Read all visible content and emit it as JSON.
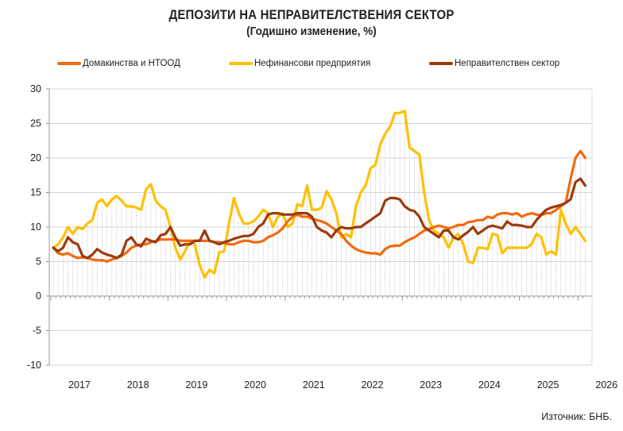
{
  "chart_data": {
    "type": "line",
    "title": "ДЕПОЗИТИ НА НЕПРАВИТЕЛСТВЕНИЯ СЕКТОР",
    "subtitle": "(Годишно изменение, %)",
    "xlabel": "",
    "ylabel": "",
    "ylim": [
      -10,
      30
    ],
    "yticks": [
      -10,
      -5,
      0,
      5,
      10,
      15,
      20,
      25,
      30
    ],
    "x_tick_labels": [
      "2017",
      "2018",
      "2019",
      "2020",
      "2021",
      "2022",
      "2023",
      "2024",
      "2025",
      "2026"
    ],
    "x_start": "2017-01",
    "frequency": "monthly",
    "grid": true,
    "legend_position": "top",
    "source": "Източник: БНБ.",
    "series": [
      {
        "name": "Домакинства и НТООД",
        "color": "#f26a10",
        "values": [
          7,
          6.2,
          6,
          6.2,
          5.8,
          5.5,
          5.6,
          5.5,
          5.3,
          5.2,
          5.2,
          5,
          5.3,
          5.5,
          5.8,
          6.3,
          7,
          7.3,
          7.5,
          7.5,
          7.8,
          8,
          8.2,
          8.2,
          8.2,
          8.2,
          8,
          8,
          8,
          8,
          8,
          8,
          8,
          7.8,
          7.8,
          7.7,
          7.5,
          7.5,
          7.8,
          8,
          8,
          7.8,
          7.8,
          8,
          8.5,
          8.8,
          9.2,
          9.8,
          10.8,
          11.5,
          11.8,
          11.5,
          11.5,
          11.2,
          11,
          10.8,
          10.5,
          10,
          9.5,
          9,
          8,
          7.3,
          6.8,
          6.5,
          6.3,
          6.2,
          6.2,
          6,
          6.8,
          7.2,
          7.3,
          7.3,
          7.8,
          8.2,
          8.5,
          9,
          9.5,
          9.7,
          10,
          10.2,
          10,
          9.8,
          10,
          10.3,
          10.3,
          10.7,
          10.8,
          11,
          11,
          11.5,
          11.3,
          11.8,
          12,
          12,
          11.8,
          12,
          11.5,
          11.8,
          12,
          11.8,
          11.7,
          12,
          12,
          12.5,
          13,
          13.5,
          17,
          20,
          21,
          20
        ]
      },
      {
        "name": "Нефинансови предприятия",
        "color": "#ffc000",
        "values": [
          7,
          7.5,
          8.5,
          10,
          9,
          10,
          9.7,
          10.5,
          11,
          13.5,
          14,
          13,
          14,
          14.5,
          13.8,
          13,
          13,
          12.8,
          12.5,
          15.5,
          16.2,
          13.8,
          13,
          12.5,
          10,
          7,
          5.3,
          6.5,
          8,
          7.5,
          4.5,
          2.7,
          3.8,
          3.3,
          6.3,
          6.5,
          10.5,
          14.2,
          12,
          10.5,
          10.5,
          10.8,
          11.5,
          12.5,
          12,
          10,
          11.5,
          12,
          10,
          10.5,
          13.3,
          13,
          16,
          12.5,
          12.5,
          12.8,
          15.2,
          14,
          12,
          8.5,
          9,
          8.5,
          13,
          15,
          16,
          18.5,
          19,
          22,
          23.5,
          24.5,
          26.5,
          26.5,
          26.8,
          21.5,
          21,
          20.5,
          15,
          11,
          9.5,
          9,
          8.5,
          7,
          8.5,
          9,
          7.5,
          5,
          4.8,
          7,
          7,
          6.8,
          9,
          8.8,
          6.2,
          7,
          7,
          7,
          7,
          7,
          7.5,
          9,
          8.5,
          6,
          6.5,
          6,
          12.5,
          10.5,
          9,
          10,
          9,
          8
        ]
      },
      {
        "name": "Неправителствен сектор",
        "color": "#9c3a0c",
        "values": [
          7,
          6.5,
          7,
          8.5,
          7.8,
          7.5,
          5.8,
          5.5,
          6,
          6.8,
          6.3,
          6,
          5.8,
          5.5,
          6,
          8,
          8.5,
          7.5,
          7.2,
          8.3,
          8,
          7.8,
          8.8,
          9,
          10,
          8.5,
          7.3,
          7.5,
          7.5,
          8,
          8,
          9.5,
          8,
          7.8,
          7.5,
          7.8,
          8,
          8.3,
          8.5,
          8.7,
          8.7,
          9,
          10,
          10.5,
          11.8,
          12,
          12,
          11.8,
          11.8,
          11.8,
          12,
          12,
          12,
          11.5,
          10,
          9.5,
          9.2,
          8.5,
          9.5,
          10,
          9.8,
          9.8,
          10,
          10,
          10.5,
          11,
          11.5,
          12,
          13.8,
          14.2,
          14.2,
          14,
          13,
          12.5,
          12.3,
          11.5,
          10,
          9.5,
          9,
          8.5,
          9.5,
          9.5,
          8.5,
          8.2,
          8.8,
          9.3,
          10,
          9,
          9.5,
          10,
          10.2,
          10,
          9.8,
          10.8,
          10.3,
          10.3,
          10.2,
          10,
          10,
          11,
          11.8,
          12.5,
          12.8,
          13,
          13.2,
          13.5,
          14,
          16.5,
          17,
          16
        ]
      }
    ]
  }
}
